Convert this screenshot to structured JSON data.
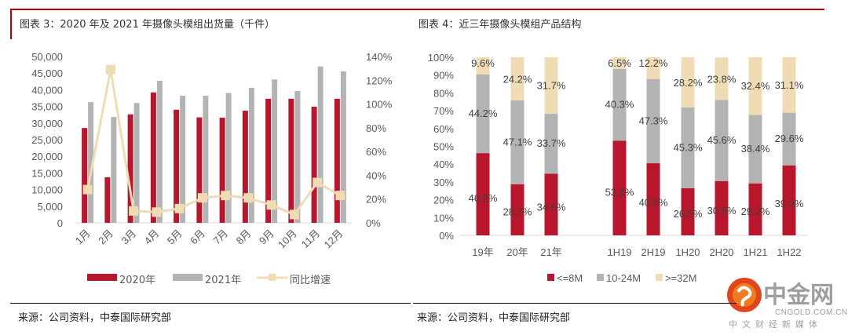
{
  "colors": {
    "accent_red": "#c00000",
    "series_2020": "#b8162c",
    "series_2021": "#b3b3b3",
    "series_yoy": "#f0dcb4",
    "seg_le8m": "#b8162c",
    "seg_10_24m": "#b3b3b3",
    "seg_ge32m": "#f0dcb4"
  },
  "left_panel": {
    "title": "图表 3：2020 年及 2021 年摄像头模组出货量（千件）",
    "source": "来源：公司资料，中泰国际研究部"
  },
  "right_panel": {
    "title": "图表 4：近三年摄像头模组产品结构",
    "source": "来源：公司资料，中泰国际研究部"
  },
  "logo": {
    "name": "中金网",
    "domain": "CNGOLD.COM.CN",
    "tagline": "中文财经新媒体"
  },
  "chart_data": [
    {
      "type": "bar",
      "subtype": "combo-bar-line-dual-axis",
      "title": "2020 年及 2021 年摄像头模组出货量（千件）",
      "categories": [
        "1月",
        "2月",
        "3月",
        "4月",
        "5月",
        "6月",
        "7月",
        "8月",
        "9月",
        "10月",
        "11月",
        "12月"
      ],
      "series": [
        {
          "name": "2020年",
          "type": "bar",
          "axis": "left",
          "values": [
            28500,
            13700,
            32600,
            39200,
            34000,
            31700,
            31600,
            33700,
            37300,
            37300,
            34900,
            37300
          ]
        },
        {
          "name": "2021年",
          "type": "bar",
          "axis": "left",
          "values": [
            36300,
            31800,
            36000,
            42700,
            38200,
            38200,
            39000,
            40600,
            43100,
            39600,
            47000,
            45500
          ]
        },
        {
          "name": "同比增速",
          "type": "line",
          "axis": "right",
          "values": [
            28,
            129,
            10,
            9,
            12,
            21,
            23,
            21,
            15,
            7,
            34,
            23
          ]
        }
      ],
      "y_left": {
        "min": 0,
        "max": 50000,
        "ticks": [
          "0",
          "5,000",
          "10,000",
          "15,000",
          "20,000",
          "25,000",
          "30,000",
          "35,000",
          "40,000",
          "45,000",
          "50,000"
        ]
      },
      "y_right": {
        "min": 0,
        "max": 140,
        "ticks": [
          "0%",
          "20%",
          "40%",
          "60%",
          "80%",
          "100%",
          "120%",
          "140%"
        ]
      },
      "legend": [
        "2020年",
        "2021年",
        "同比增速"
      ],
      "legend_position": "bottom",
      "grid": false
    },
    {
      "type": "bar",
      "subtype": "stacked-100",
      "title": "近三年摄像头模组产品结构",
      "categories": [
        "19年",
        "20年",
        "21年",
        "1H19",
        "2H19",
        "1H20",
        "2H20",
        "1H21",
        "1H22"
      ],
      "series": [
        {
          "name": "<=8M",
          "values": [
            46.2,
            28.7,
            34.6,
            53.2,
            40.5,
            26.5,
            30.5,
            29.2,
            39.3
          ],
          "labels": [
            "46.2%",
            "28.7%",
            "34.6%",
            "53.2%",
            "40.5%",
            "26.5%",
            "30.5%",
            "29.2%",
            "39.3%"
          ]
        },
        {
          "name": "10-24M",
          "values": [
            44.2,
            47.1,
            33.7,
            40.3,
            47.3,
            45.3,
            45.6,
            38.4,
            29.6
          ],
          "labels": [
            "44.2%",
            "47.1%",
            "33.7%",
            "40.3%",
            "47.3%",
            "45.3%",
            "45.6%",
            "38.4%",
            "29.6%"
          ]
        },
        {
          "name": ">=32M",
          "values": [
            9.6,
            24.2,
            31.7,
            6.5,
            12.2,
            28.2,
            23.8,
            32.4,
            31.1
          ],
          "labels": [
            "9.6%",
            "24.2%",
            "31.7%",
            "6.5%",
            "12.2%",
            "28.2%",
            "23.8%",
            "32.4%",
            "31.1%"
          ]
        }
      ],
      "y": {
        "min": 0,
        "max": 100,
        "ticks": [
          "0%",
          "10%",
          "20%",
          "30%",
          "40%",
          "50%",
          "60%",
          "70%",
          "80%",
          "90%",
          "100%"
        ]
      },
      "legend": [
        "<=8M",
        "10-24M",
        ">=32M"
      ],
      "legend_position": "bottom",
      "grid": false
    }
  ]
}
